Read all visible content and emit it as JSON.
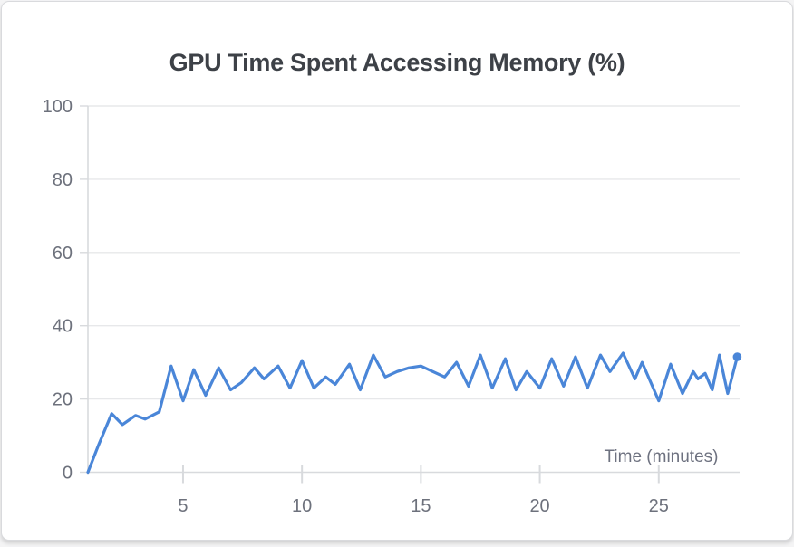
{
  "card": {
    "background": "#ffffff",
    "border_color": "#d9dadd"
  },
  "colors": {
    "title_text": "#3d4147",
    "axis_text": "#6d717c",
    "grid_line": "#e7e8ea",
    "axis_line": "#d8dadd",
    "series_line": "#4a86d8"
  },
  "chart_data": {
    "type": "line",
    "title": "GPU Time Spent Accessing Memory (%)",
    "xlabel": "Time (minutes)",
    "ylabel": "",
    "xlim": [
      1,
      28.4
    ],
    "ylim": [
      0,
      100
    ],
    "x_ticks": [
      5,
      10,
      15,
      20,
      25
    ],
    "y_ticks": [
      0,
      20,
      40,
      60,
      80,
      100
    ],
    "grid": "horizontal-only",
    "legend": "none",
    "line_color": "#4a86d8",
    "end_marker": true,
    "points": [
      [
        1.0,
        0
      ],
      [
        1.45,
        7.5
      ],
      [
        2.0,
        16
      ],
      [
        2.45,
        13
      ],
      [
        3.0,
        15.5
      ],
      [
        3.4,
        14.5
      ],
      [
        4.0,
        16.5
      ],
      [
        4.5,
        29
      ],
      [
        5.0,
        19.5
      ],
      [
        5.45,
        28
      ],
      [
        5.95,
        21
      ],
      [
        6.5,
        28.5
      ],
      [
        7.0,
        22.5
      ],
      [
        7.45,
        24.5
      ],
      [
        8.0,
        28.5
      ],
      [
        8.4,
        25.5
      ],
      [
        9.0,
        29
      ],
      [
        9.5,
        23
      ],
      [
        10.0,
        30.5
      ],
      [
        10.5,
        23
      ],
      [
        11.0,
        26
      ],
      [
        11.4,
        24
      ],
      [
        12.0,
        29.5
      ],
      [
        12.45,
        22.5
      ],
      [
        13.0,
        32
      ],
      [
        13.5,
        26
      ],
      [
        14.0,
        27.5
      ],
      [
        14.5,
        28.5
      ],
      [
        15.0,
        29
      ],
      [
        15.5,
        27.5
      ],
      [
        16.0,
        26
      ],
      [
        16.5,
        30
      ],
      [
        17.0,
        23.5
      ],
      [
        17.5,
        32
      ],
      [
        18.0,
        23
      ],
      [
        18.55,
        31
      ],
      [
        19.0,
        22.5
      ],
      [
        19.45,
        27.5
      ],
      [
        20.0,
        23
      ],
      [
        20.5,
        31
      ],
      [
        21.0,
        23.5
      ],
      [
        21.5,
        31.5
      ],
      [
        22.0,
        23
      ],
      [
        22.55,
        32
      ],
      [
        22.95,
        27.5
      ],
      [
        23.5,
        32.5
      ],
      [
        24.0,
        25.5
      ],
      [
        24.3,
        30
      ],
      [
        25.0,
        19.5
      ],
      [
        25.5,
        29.5
      ],
      [
        26.0,
        21.5
      ],
      [
        26.45,
        27.5
      ],
      [
        26.65,
        25.5
      ],
      [
        26.95,
        27
      ],
      [
        27.25,
        22.5
      ],
      [
        27.55,
        32
      ],
      [
        27.9,
        21.5
      ],
      [
        28.3,
        31.5
      ]
    ]
  }
}
